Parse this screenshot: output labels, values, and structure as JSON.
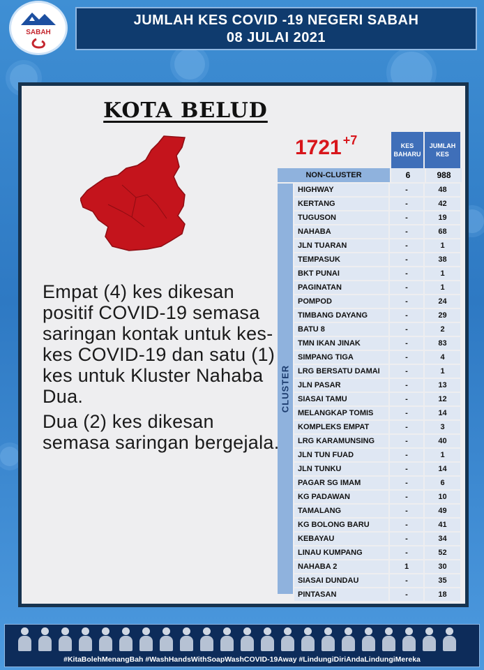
{
  "logo": {
    "text": "SABAH"
  },
  "header": {
    "line1": "JUMLAH KES COVID -19 NEGERI SABAH",
    "line2": "08 JULAI 2021"
  },
  "district": "KOTA BELUD",
  "totals": {
    "cumulative": "1721",
    "new": "+7"
  },
  "columns": {
    "new": "KES BAHARU",
    "total": "JUMLAH KES"
  },
  "non_cluster": {
    "label": "NON-CLUSTER",
    "new": "6",
    "total": "988"
  },
  "cluster_label": "CLUSTER",
  "clusters": [
    {
      "name": "HIGHWAY",
      "new": "-",
      "total": "48"
    },
    {
      "name": "KERTANG",
      "new": "-",
      "total": "42"
    },
    {
      "name": "TUGUSON",
      "new": "-",
      "total": "19"
    },
    {
      "name": "NAHABA",
      "new": "-",
      "total": "68"
    },
    {
      "name": "JLN TUARAN",
      "new": "-",
      "total": "1"
    },
    {
      "name": "TEMPASUK",
      "new": "-",
      "total": "38"
    },
    {
      "name": "BKT PUNAI",
      "new": "-",
      "total": "1"
    },
    {
      "name": "PAGINATAN",
      "new": "-",
      "total": "1"
    },
    {
      "name": "POMPOD",
      "new": "-",
      "total": "24"
    },
    {
      "name": "TIMBANG DAYANG",
      "new": "-",
      "total": "29"
    },
    {
      "name": "BATU 8",
      "new": "-",
      "total": "2"
    },
    {
      "name": "TMN IKAN JINAK",
      "new": "-",
      "total": "83"
    },
    {
      "name": "SIMPANG TIGA",
      "new": "-",
      "total": "4"
    },
    {
      "name": "LRG BERSATU DAMAI",
      "new": "-",
      "total": "1"
    },
    {
      "name": "JLN PASAR",
      "new": "-",
      "total": "13"
    },
    {
      "name": "SIASAI TAMU",
      "new": "-",
      "total": "12"
    },
    {
      "name": "MELANGKAP TOMIS",
      "new": "-",
      "total": "14"
    },
    {
      "name": "KOMPLEKS EMPAT",
      "new": "-",
      "total": "3"
    },
    {
      "name": "LRG KARAMUNSING",
      "new": "-",
      "total": "40"
    },
    {
      "name": "JLN TUN FUAD",
      "new": "-",
      "total": "1"
    },
    {
      "name": "JLN TUNKU",
      "new": "-",
      "total": "14"
    },
    {
      "name": "PAGAR SG IMAM",
      "new": "-",
      "total": "6"
    },
    {
      "name": "KG PADAWAN",
      "new": "-",
      "total": "10"
    },
    {
      "name": "TAMALANG",
      "new": "-",
      "total": "49"
    },
    {
      "name": "KG BOLONG BARU",
      "new": "-",
      "total": "41"
    },
    {
      "name": "KEBAYAU",
      "new": "-",
      "total": "34"
    },
    {
      "name": "LINAU KUMPANG",
      "new": "-",
      "total": "52"
    },
    {
      "name": "NAHABA 2",
      "new": "1",
      "total": "30"
    },
    {
      "name": "SIASAI DUNDAU",
      "new": "-",
      "total": "35"
    },
    {
      "name": "PINTASAN",
      "new": "-",
      "total": "18"
    }
  ],
  "description": [
    "Empat (4) kes dikesan positif COVID-19 semasa saringan kontak untuk kes-kes COVID-19 dan satu (1) kes untuk Kluster Nahaba Dua.",
    "Dua (2) kes dikesan semasa saringan bergejala."
  ],
  "footer_hashtags": "#KitaBolehMenangBah #WashHandsWithSoapWashCOVID-19Away #LindungiDiriAndaLindungiMereka",
  "colors": {
    "header_bg": "#0f3b6e",
    "map_fill": "#c4141c",
    "total_red": "#d8161c",
    "table_head": "#3f6fb9"
  },
  "icons": [
    "sabah-logo-icon",
    "district-map-icon",
    "people-icon"
  ]
}
